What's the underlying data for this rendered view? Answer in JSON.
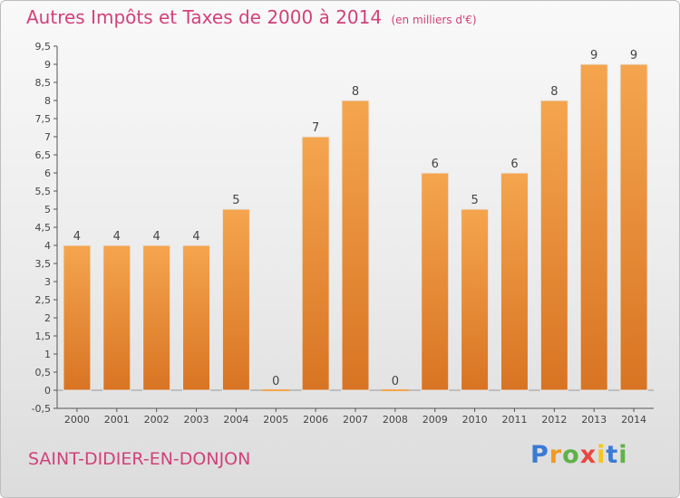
{
  "header": {
    "title": "Autres Impôts et Taxes de 2000 à 2014",
    "subtitle": "(en milliers d'€)"
  },
  "footer": {
    "commune": "SAINT-DIDIER-EN-DONJON",
    "brand_letters": [
      "P",
      "r",
      "o",
      "x",
      "i",
      "t",
      "i"
    ]
  },
  "colors": {
    "title": "#d1417a",
    "bar_light": "#f5a54e",
    "bar_dark": "#d87423"
  },
  "chart_data": {
    "type": "bar",
    "categories": [
      "2000",
      "2001",
      "2002",
      "2003",
      "2004",
      "2005",
      "2006",
      "2007",
      "2008",
      "2009",
      "2010",
      "2011",
      "2012",
      "2013",
      "2014"
    ],
    "values": [
      4,
      4,
      4,
      4,
      5,
      0,
      7,
      8,
      0,
      6,
      5,
      6,
      8,
      9,
      9
    ],
    "ylim": [
      -0.5,
      9.5
    ],
    "yticks": [
      "-0,5",
      "0",
      "0,5",
      "1",
      "1,5",
      "2",
      "2,5",
      "3",
      "3,5",
      "4",
      "4,5",
      "5",
      "5,5",
      "6",
      "6,5",
      "7",
      "7,5",
      "8",
      "8,5",
      "9",
      "9,5"
    ],
    "grid": false,
    "legend": "none"
  }
}
